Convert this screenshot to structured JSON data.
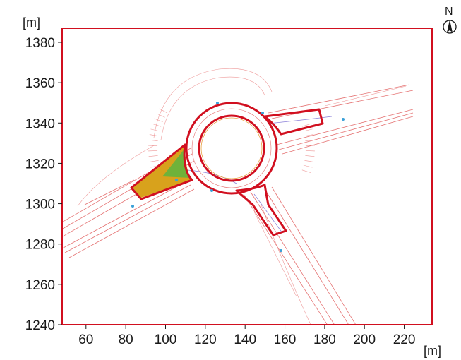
{
  "axes": {
    "x_unit": "[m]",
    "y_unit": "[m]",
    "x_ticks": [
      60,
      80,
      100,
      120,
      140,
      160,
      180,
      200,
      220
    ],
    "y_ticks": [
      1240,
      1260,
      1280,
      1300,
      1320,
      1340,
      1360,
      1380
    ],
    "x_range": [
      48,
      234
    ],
    "y_range": [
      1240,
      1387
    ]
  },
  "north_arrow": {
    "label": "N",
    "icon": "north-arrow-icon"
  },
  "colors": {
    "frame": "#d10f1f",
    "outline": "#d10f1f",
    "lanes": "#e57373",
    "island_fill_orange": "#d8a21c",
    "island_fill_green": "#6fb23a",
    "blue_markers": "#3aa0d8"
  }
}
